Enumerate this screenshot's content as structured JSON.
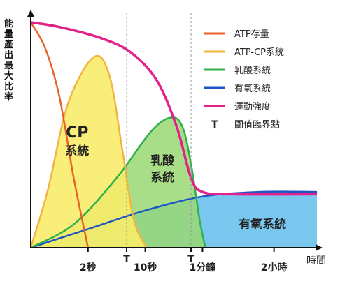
{
  "chart_data": {
    "type": "area",
    "ylabel": "能量產出最大比率",
    "xlabel": "時間",
    "x_ticks": [
      {
        "x": 2,
        "label": "2秒"
      },
      {
        "x": 3.35,
        "label": "T"
      },
      {
        "x": 4,
        "label": "10秒"
      },
      {
        "x": 5.6,
        "label": "T"
      },
      {
        "x": 6,
        "label": "1分鐘"
      },
      {
        "x": 8.5,
        "label": "2小時"
      }
    ],
    "xlim": [
      0,
      10
    ],
    "ylim": [
      0,
      100
    ],
    "thresholds": [
      3.35,
      5.6
    ],
    "legend_position": "top-right",
    "legend": [
      {
        "key": "atp",
        "label": "ATP存量",
        "color": "#e8622a",
        "symbol": "line"
      },
      {
        "key": "cp",
        "label": "ATP-CP系統",
        "color": "#f2b441",
        "symbol": "line"
      },
      {
        "key": "lactic",
        "label": "乳酸系統",
        "color": "#2fb04a",
        "symbol": "line"
      },
      {
        "key": "aerobic",
        "label": "有氧系統",
        "color": "#1d55c4",
        "symbol": "line"
      },
      {
        "key": "intensity",
        "label": "運動強度",
        "color": "#e3218a",
        "symbol": "line"
      },
      {
        "key": "threshold",
        "label": "閾值臨界點",
        "color": "#555555",
        "symbol": "T"
      }
    ],
    "series": [
      {
        "key": "atp",
        "x": [
          0,
          0.5,
          1,
          1.5,
          2
        ],
        "y": [
          97,
          86,
          65,
          30,
          0
        ]
      },
      {
        "key": "cp",
        "x": [
          0,
          0.6,
          1.3,
          2.2,
          2.75,
          3.2,
          3.6,
          4.05
        ],
        "y": [
          0,
          25,
          62,
          82,
          74,
          42,
          12,
          0
        ]
      },
      {
        "key": "lactic",
        "x": [
          0,
          1.5,
          3,
          4.2,
          4.9,
          5.3,
          5.6,
          5.9,
          6.1
        ],
        "y": [
          0,
          10,
          30,
          50,
          56,
          52,
          36,
          12,
          0
        ]
      },
      {
        "key": "aerobic",
        "x": [
          0,
          2,
          4,
          6,
          8,
          10
        ],
        "y": [
          0,
          8,
          16,
          22,
          24,
          24
        ]
      },
      {
        "key": "intensity",
        "x": [
          0,
          1,
          2.5,
          3.5,
          4.4,
          5.1,
          5.6,
          6,
          7,
          10
        ],
        "y": [
          97,
          95,
          90,
          84,
          72,
          52,
          30,
          24,
          23,
          23
        ]
      }
    ],
    "area_labels": {
      "cp": "CP\n系統",
      "lactic": "乳酸\n系統",
      "aerobic": "有氧系統"
    }
  }
}
